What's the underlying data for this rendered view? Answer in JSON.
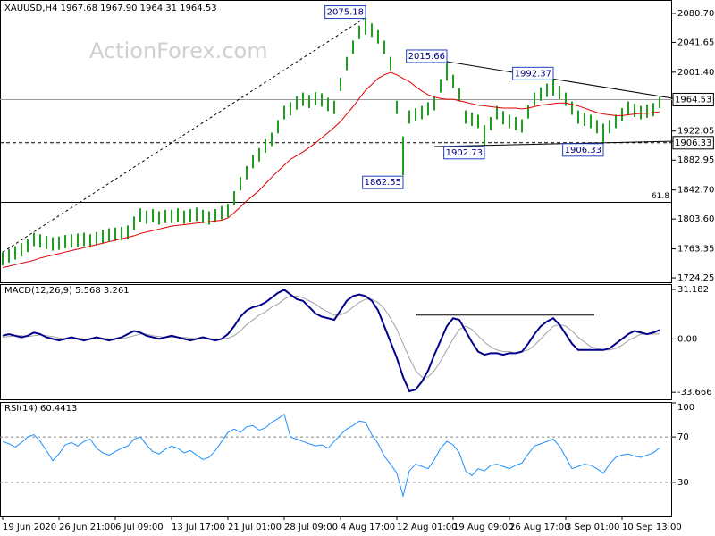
{
  "chart_data": [
    {
      "type": "range-bar",
      "title": "XAUUSD,H4  1967.68 1967.90 1964.31 1964.53",
      "watermark": "ActionForex.com",
      "color": "#1f9e1f",
      "high": [
        1759,
        1763,
        1767,
        1771,
        1777,
        1785,
        1783,
        1781,
        1779,
        1780,
        1782,
        1783,
        1784,
        1785,
        1783,
        1786,
        1789,
        1791,
        1792,
        1793,
        1795,
        1807,
        1818,
        1815,
        1817,
        1814,
        1816,
        1816,
        1818,
        1815,
        1817,
        1819,
        1816,
        1814,
        1817,
        1821,
        1824,
        1841,
        1860,
        1875,
        1890,
        1899,
        1911,
        1920,
        1937,
        1956,
        1961,
        1969,
        1974,
        1971,
        1975,
        1973,
        1967,
        1963,
        1994,
        2022,
        2044,
        2064,
        2075.18,
        2067,
        2058,
        2044,
        2022,
        1963,
        1915,
        1950,
        1953,
        1956,
        1961,
        1968,
        1992,
        2015.66,
        1998,
        1980,
        1950,
        1947,
        1944,
        1930,
        1941,
        1956,
        1949,
        1944,
        1941,
        1938,
        1957,
        1974,
        1981,
        1986,
        1992.37,
        1983,
        1974,
        1962,
        1950,
        1947,
        1944,
        1937,
        1932,
        1937,
        1944,
        1953,
        1962,
        1959,
        1956,
        1958,
        1960,
        1967.9
      ],
      "low": [
        1741,
        1745,
        1749,
        1753,
        1759,
        1767,
        1765,
        1763,
        1761,
        1762,
        1764,
        1765,
        1766,
        1767,
        1765,
        1768,
        1771,
        1773,
        1774,
        1775,
        1777,
        1789,
        1800,
        1797,
        1799,
        1796,
        1798,
        1798,
        1800,
        1797,
        1799,
        1801,
        1798,
        1796,
        1799,
        1803,
        1806,
        1823,
        1842,
        1857,
        1872,
        1881,
        1893,
        1902,
        1919,
        1938,
        1943,
        1951,
        1956,
        1953,
        1957,
        1955,
        1949,
        1945,
        1976,
        2004,
        2026,
        2046,
        2052,
        2049,
        2040,
        2026,
        2004,
        1945,
        1862.55,
        1932,
        1935,
        1938,
        1943,
        1950,
        1974,
        1990,
        1980,
        1962,
        1932,
        1929,
        1926,
        1902.73,
        1923,
        1938,
        1931,
        1926,
        1923,
        1920,
        1939,
        1956,
        1963,
        1968,
        1970,
        1965,
        1956,
        1944,
        1932,
        1929,
        1926,
        1919,
        1906.33,
        1919,
        1926,
        1935,
        1944,
        1941,
        1938,
        1940,
        1942,
        1953
      ],
      "ma": {
        "color": "#e00000",
        "values": [
          1738,
          1740,
          1742,
          1744,
          1746,
          1748,
          1751,
          1753,
          1755,
          1757,
          1759,
          1761,
          1763,
          1765,
          1767,
          1769,
          1771,
          1773,
          1775,
          1777,
          1779,
          1781,
          1784,
          1786,
          1788,
          1790,
          1792,
          1794,
          1795,
          1796,
          1797,
          1798,
          1799,
          1800,
          1801,
          1802,
          1805,
          1812,
          1820,
          1828,
          1835,
          1842,
          1851,
          1860,
          1868,
          1876,
          1884,
          1889,
          1894,
          1900,
          1906,
          1913,
          1920,
          1927,
          1935,
          1945,
          1955,
          1966,
          1977,
          1985,
          1993,
          1998,
          2001,
          1998,
          1993,
          1989,
          1982,
          1976,
          1971,
          1968,
          1966,
          1965,
          1965,
          1963,
          1961,
          1959,
          1957,
          1956,
          1955,
          1954,
          1953,
          1953,
          1953,
          1952,
          1953,
          1955,
          1957,
          1958,
          1959,
          1960,
          1960,
          1958,
          1956,
          1953,
          1950,
          1947,
          1945,
          1944,
          1943,
          1943,
          1944,
          1945,
          1946,
          1946,
          1947,
          1948
        ]
      },
      "ylim": [
        1718.3,
        2097.5
      ],
      "yticks": [
        {
          "value": 2080.7,
          "label": "2080.70"
        },
        2041.65,
        {
          "value": 2001.4,
          "label": "2001.40"
        },
        1922.05,
        1882.95,
        {
          "value": 1842.7,
          "label": "1842.70"
        },
        {
          "value": 1803.6,
          "label": "1803.60"
        },
        1763.35,
        1724.25
      ],
      "price_line": 1964.53,
      "hline": 1906.33,
      "fib_level": {
        "value": 1826,
        "label": "61.8"
      },
      "marked_highs": [
        2075.18,
        2015.66,
        1992.37
      ],
      "marked_lows": [
        1862.55,
        1902.73,
        1906.33
      ]
    },
    {
      "type": "line",
      "title": "MACD(12,26,9) 5.568 3.261",
      "series": [
        {
          "color": "#00008b",
          "values": [
            2,
            3,
            2,
            1,
            2,
            4,
            3,
            1,
            0,
            -1,
            0,
            1,
            0,
            -1,
            0,
            1,
            0,
            -1,
            0,
            1,
            3,
            5,
            4,
            2,
            1,
            0,
            1,
            2,
            1,
            0,
            -1,
            0,
            1,
            0,
            -1,
            0,
            3,
            8,
            14,
            18,
            20,
            21,
            23,
            26,
            29,
            31,
            28,
            25,
            24,
            20,
            16,
            14,
            13,
            12,
            18,
            24,
            27,
            28,
            27,
            24,
            18,
            8,
            -2,
            -12,
            -24,
            -33,
            -32,
            -27,
            -20,
            -10,
            -1,
            8,
            13,
            12,
            5,
            -2,
            -8,
            -10,
            -9,
            -9,
            -10,
            -9,
            -9,
            -8,
            -3,
            3,
            8,
            11,
            13,
            9,
            3,
            -3,
            -7,
            -7,
            -7,
            -7,
            -7,
            -6,
            -3,
            0,
            3,
            5,
            4,
            3,
            4,
            5.568
          ]
        },
        {
          "color": "#a0a0a0",
          "values": [
            1,
            1.5,
            2,
            2,
            1.5,
            2,
            2.5,
            2,
            1.5,
            0.5,
            0,
            0,
            0.5,
            0,
            0,
            0,
            0.5,
            0,
            0,
            0,
            1,
            2,
            3,
            3,
            2,
            1.5,
            1,
            1,
            1,
            1,
            0.5,
            0,
            0,
            0,
            0,
            0,
            0.5,
            2,
            5,
            9,
            12,
            15,
            17,
            20,
            22,
            25,
            27,
            27,
            26,
            24,
            22,
            19,
            17,
            15,
            15,
            17,
            20,
            23,
            25,
            25,
            23,
            19,
            13,
            6,
            -3,
            -12,
            -20,
            -24,
            -24,
            -20,
            -14,
            -7,
            0,
            6,
            8,
            6,
            2,
            -2,
            -5,
            -7,
            -8,
            -8,
            -9,
            -8,
            -7,
            -4,
            0,
            4,
            8,
            9,
            8,
            5,
            1,
            -2,
            -5,
            -6,
            -7,
            -7,
            -6,
            -4,
            -1,
            1,
            3,
            3,
            3,
            3.261
          ]
        }
      ],
      "ylim": [
        -38.1,
        34.0
      ],
      "yticks": [
        31.182,
        {
          "value": 0,
          "label": "0.00"
        },
        -33.666
      ],
      "level": 15
    },
    {
      "type": "line",
      "title": "RSI(14) 60.4413",
      "series": [
        {
          "color": "#1e90ff",
          "values": [
            66,
            64,
            61,
            65,
            70,
            72,
            66,
            58,
            49,
            55,
            63,
            65,
            62,
            66,
            68,
            60,
            56,
            54,
            57,
            60,
            62,
            68,
            70,
            63,
            57,
            55,
            59,
            62,
            60,
            56,
            58,
            54,
            50,
            52,
            58,
            66,
            74,
            77,
            74,
            79,
            80,
            76,
            78,
            83,
            86,
            90,
            70,
            68,
            66,
            64,
            62,
            63,
            60,
            66,
            72,
            77,
            80,
            84,
            83,
            72,
            64,
            53,
            46,
            38,
            18,
            40,
            46,
            44,
            42,
            50,
            60,
            66,
            63,
            56,
            40,
            36,
            42,
            40,
            45,
            46,
            44,
            42,
            45,
            47,
            55,
            62,
            64,
            66,
            68,
            62,
            52,
            42,
            44,
            46,
            45,
            42,
            38,
            46,
            52,
            54,
            55,
            53,
            52,
            54,
            56,
            60.4413
          ]
        }
      ],
      "ylim": [
        0,
        100
      ],
      "yticks": [
        100,
        70,
        30
      ],
      "grid": true,
      "categories": [
        "19 Jun 2020",
        null,
        null,
        null,
        null,
        null,
        null,
        null,
        null,
        "26 Jun 21:00",
        null,
        null,
        null,
        null,
        null,
        null,
        null,
        null,
        "6 Jul 09:00",
        null,
        null,
        null,
        null,
        null,
        null,
        null,
        null,
        "13 Jul 17:00",
        null,
        null,
        null,
        null,
        null,
        null,
        null,
        null,
        "21 Jul 01:00",
        null,
        null,
        null,
        null,
        null,
        null,
        null,
        null,
        "28 Jul 09:00",
        null,
        null,
        null,
        null,
        null,
        null,
        null,
        null,
        "4 Aug 17:00",
        null,
        null,
        null,
        null,
        null,
        null,
        null,
        null,
        "12 Aug 01:00",
        null,
        null,
        null,
        null,
        null,
        null,
        null,
        null,
        "19 Aug 09:00",
        null,
        null,
        null,
        null,
        null,
        null,
        null,
        null,
        "26 Aug 17:00",
        null,
        null,
        null,
        null,
        null,
        null,
        null,
        null,
        "3 Sep 01:00",
        null,
        null,
        null,
        null,
        null,
        null,
        null,
        null,
        "10 Sep 13:00",
        null,
        null,
        null,
        null,
        null,
        null
      ]
    }
  ]
}
